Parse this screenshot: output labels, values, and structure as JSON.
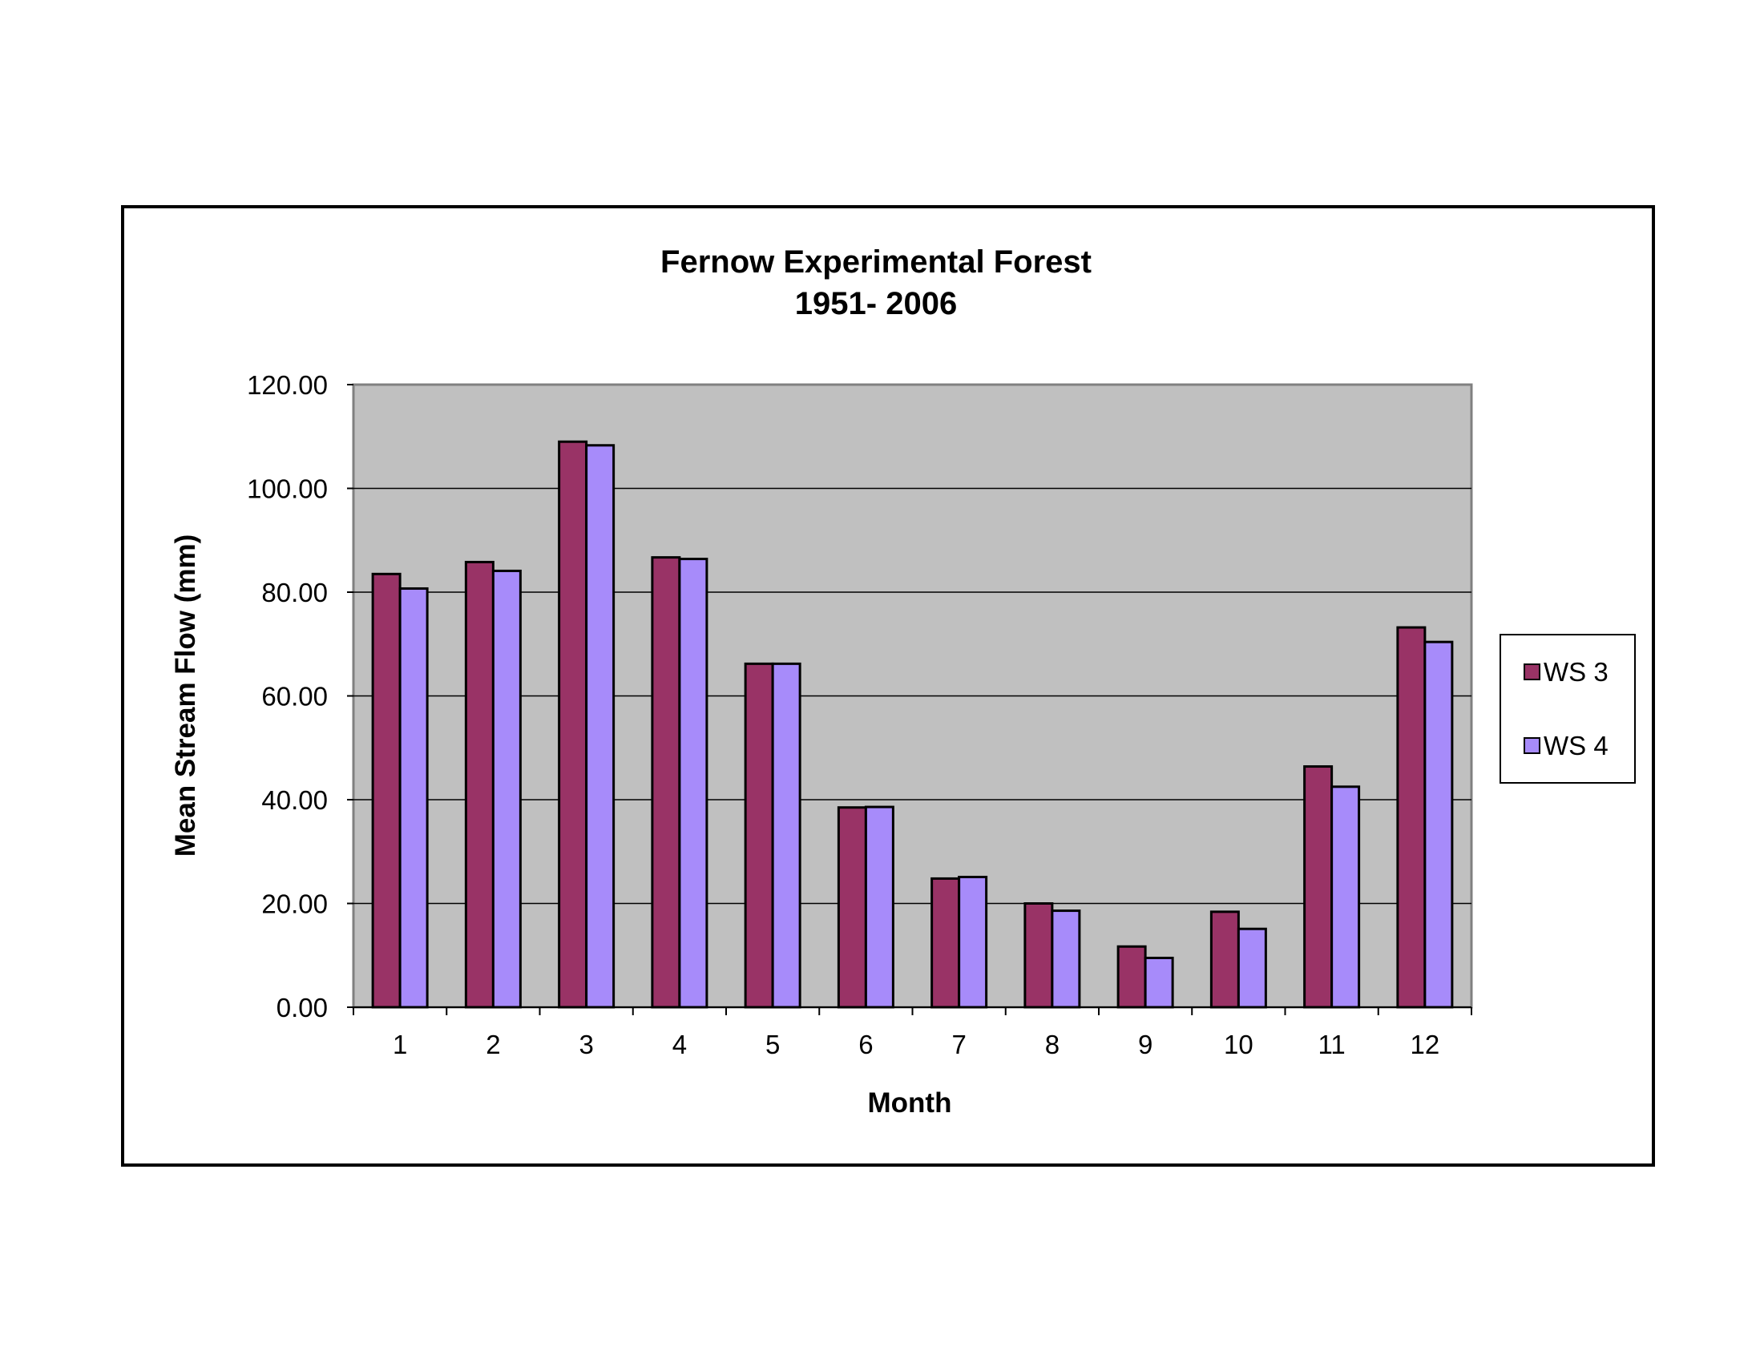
{
  "chart_data": {
    "type": "bar",
    "title": "Fernow Experimental Forest",
    "subtitle": "1951- 2006",
    "xlabel": "Month",
    "ylabel": "Mean Stream Flow (mm)",
    "categories": [
      "1",
      "2",
      "3",
      "4",
      "5",
      "6",
      "7",
      "8",
      "9",
      "10",
      "11",
      "12"
    ],
    "ylim": [
      0,
      120
    ],
    "yticks": [
      "0.00",
      "20.00",
      "40.00",
      "60.00",
      "80.00",
      "100.00",
      "120.00"
    ],
    "grid": true,
    "legend_position": "right",
    "plot_background": "#C0C0C0",
    "series": [
      {
        "name": "WS 3",
        "color": "#993366",
        "values": [
          83.5,
          85.8,
          109.0,
          86.7,
          66.2,
          38.5,
          24.8,
          20.0,
          11.7,
          18.4,
          46.4,
          73.2
        ]
      },
      {
        "name": "WS 4",
        "color": "#A78BFA",
        "values": [
          80.7,
          84.1,
          108.3,
          86.4,
          66.2,
          38.6,
          25.1,
          18.6,
          9.5,
          15.1,
          42.5,
          70.4
        ]
      }
    ]
  }
}
